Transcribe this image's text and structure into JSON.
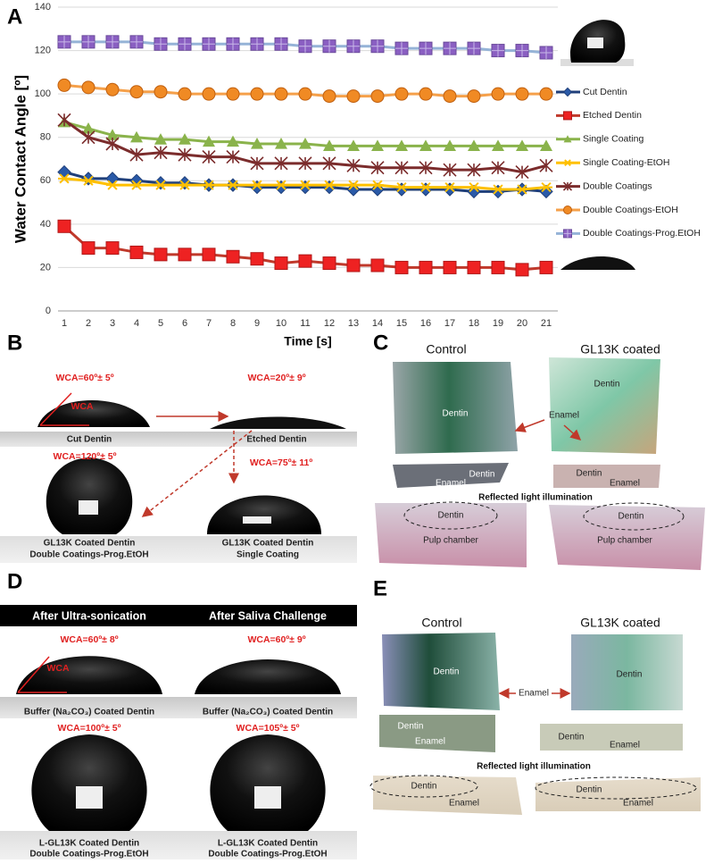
{
  "panel_labels": [
    "A",
    "B",
    "C",
    "D",
    "E"
  ],
  "chart_data": {
    "type": "line",
    "y_label": "Water Contact Angle [º]",
    "x_label": "Time [s]",
    "categories": [
      "1",
      "2",
      "3",
      "4",
      "5",
      "6",
      "7",
      "8",
      "9",
      "10",
      "11",
      "12",
      "13",
      "14",
      "15",
      "16",
      "17",
      "18",
      "19",
      "20",
      "21"
    ],
    "ylim": [
      0,
      140
    ],
    "yticks": [
      0,
      20,
      40,
      60,
      80,
      100,
      120,
      140
    ],
    "grid": true,
    "series": [
      {
        "name": "Cut Dentin",
        "color": "#2a5aa8",
        "line_color": "#1f3f7a",
        "marker": "diamond",
        "values": [
          64,
          61,
          61,
          60,
          59,
          59,
          58,
          58,
          57,
          57,
          57,
          57,
          56,
          56,
          56,
          56,
          56,
          55,
          55,
          56,
          55
        ]
      },
      {
        "name": "Etched Dentin",
        "color": "#ee2222",
        "line_color": "#c0392b",
        "marker": "square",
        "values": [
          39,
          29,
          29,
          27,
          26,
          26,
          26,
          25,
          24,
          22,
          23,
          22,
          21,
          21,
          20,
          20,
          20,
          20,
          20,
          19,
          20
        ]
      },
      {
        "name": "Single Coating",
        "color": "#8ab34b",
        "line_color": "#8ab34b",
        "marker": "triangle",
        "values": [
          87,
          84,
          81,
          80,
          79,
          79,
          78,
          78,
          77,
          77,
          77,
          76,
          76,
          76,
          76,
          76,
          76,
          76,
          76,
          76,
          76
        ]
      },
      {
        "name": "Single Coating-EtOH",
        "color": "#ffc000",
        "line_color": "#ffc000",
        "marker": "asterisk",
        "values": [
          61,
          60,
          58,
          58,
          58,
          58,
          58,
          58,
          58,
          58,
          58,
          58,
          58,
          58,
          57,
          57,
          57,
          57,
          56,
          56,
          57
        ]
      },
      {
        "name": "Double Coatings",
        "color": "#7b2c2c",
        "line_color": "#7b2c2c",
        "marker": "star",
        "values": [
          88,
          80,
          77,
          72,
          73,
          72,
          71,
          71,
          68,
          68,
          68,
          68,
          67,
          66,
          66,
          66,
          65,
          65,
          66,
          64,
          67
        ]
      },
      {
        "name": "Double Coatings-EtOH",
        "color": "#f08a24",
        "line_color": "#f5a04a",
        "marker": "circle",
        "values": [
          104,
          103,
          102,
          101,
          101,
          100,
          100,
          100,
          100,
          100,
          100,
          99,
          99,
          99,
          100,
          100,
          99,
          99,
          100,
          100,
          100
        ]
      },
      {
        "name": "Double Coatings-Prog.EtOH",
        "color": "#8a5fc2",
        "line_color": "#95b3d7",
        "marker": "square-plus",
        "values": [
          124,
          124,
          124,
          124,
          123,
          123,
          123,
          123,
          123,
          123,
          122,
          122,
          122,
          122,
          121,
          121,
          121,
          121,
          120,
          120,
          119
        ]
      }
    ]
  },
  "panel_b": {
    "texts": [
      "WCA=60º± 5º",
      "WCA",
      "WCA=20º± 9º",
      "Cut Dentin",
      "Etched Dentin",
      "WCA=120º± 5º",
      "WCA=75º± 11º",
      "GL13K Coated Dentin",
      "Double Coatings-Prog.EtOH",
      "GL13K Coated Dentin",
      "Single Coating"
    ]
  },
  "panel_c": {
    "texts": [
      "Control",
      "GL13K coated",
      "Dentin",
      "Enamel",
      "Dentin",
      "Dentin",
      "Enamel",
      "Dentin",
      "Enamel",
      "Reflected light illumination",
      "Dentin",
      "Pulp chamber",
      "Dentin",
      "Pulp chamber"
    ]
  },
  "panel_d": {
    "texts": [
      "After Ultra-sonication",
      "After Saliva Challenge",
      "WCA=60º± 8º",
      "WCA",
      "WCA=60º± 9º",
      "Buffer (Na₂CO₃) Coated Dentin",
      "Buffer (Na₂CO₃) Coated Dentin",
      "WCA=100º± 5º",
      "WCA=105º± 5º",
      "L-GL13K Coated Dentin",
      "Double Coatings-Prog.EtOH",
      "L-GL13K Coated Dentin",
      "Double Coatings-Prog.EtOH"
    ]
  },
  "panel_e": {
    "texts": [
      "Control",
      "GL13K coated",
      "Dentin",
      "Enamel",
      "Dentin",
      "Dentin",
      "Enamel",
      "Dentin",
      "Enamel",
      "Reflected light illumination",
      "Dentin",
      "Enamel",
      "Dentin",
      "Enamel"
    ]
  }
}
